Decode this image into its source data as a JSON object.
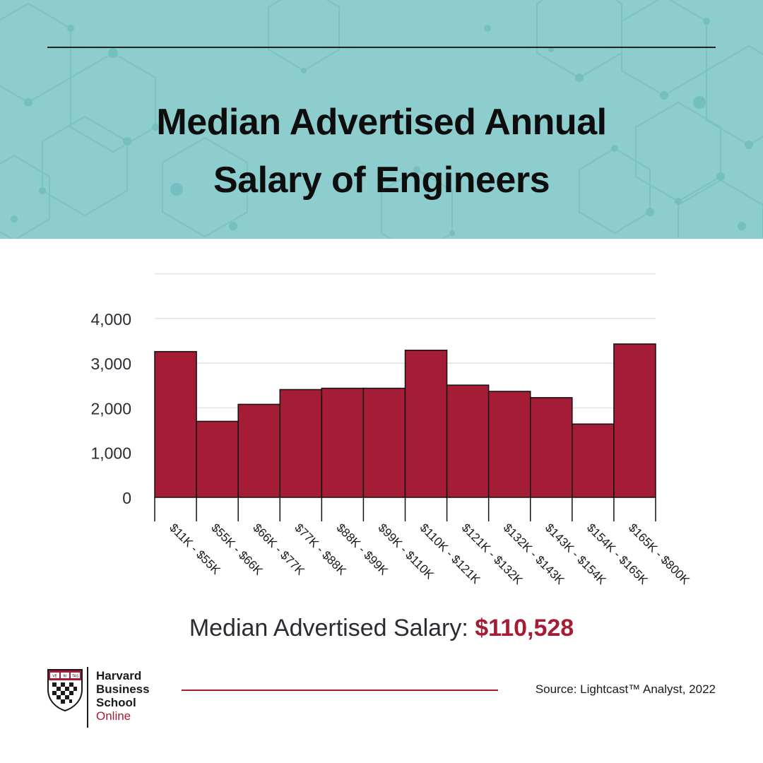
{
  "header": {
    "title_line1": "Median Advertised Annual",
    "title_line2": "Salary of Engineers",
    "background_color": "#8ecdce",
    "pattern_color": "#76bfc1"
  },
  "chart_data": {
    "type": "bar",
    "categories": [
      "$11K - $55K",
      "$55K - $66K",
      "$66K - $77K",
      "$77K - $88K",
      "$88K - $99K",
      "$99K - $110K",
      "$110K - $121K",
      "$121K - $132K",
      "$132K - $143K",
      "$143K - $154K",
      "$154K - $165K",
      "$165K - $800K"
    ],
    "values": [
      3260,
      1700,
      2080,
      2410,
      2440,
      2440,
      3290,
      2510,
      2370,
      2230,
      1640,
      3430
    ],
    "ylim": [
      0,
      5000
    ],
    "yticks": [
      0,
      1000,
      2000,
      3000,
      4000
    ],
    "ytick_labels": [
      "0",
      "1,000",
      "2,000",
      "3,000",
      "4,000"
    ],
    "gridlines": [
      1000,
      2000,
      3000,
      4000,
      5000
    ],
    "grid": true,
    "bar_color": "#a51c36",
    "bar_edge_color": "#111111",
    "gridline_color": "#e3e3e3",
    "axis_text_color": "#2a2b33"
  },
  "median": {
    "label": "Median Advertised Salary: ",
    "value": "$110,528",
    "value_color": "#a51c36"
  },
  "logo": {
    "line1": "Harvard",
    "line2": "Business",
    "line3": "School",
    "line4": "Online",
    "shield_label_1": "VE",
    "shield_label_2": "RI",
    "shield_label_3": "TAS",
    "accent_color": "#a51c36"
  },
  "footer": {
    "source": "Source: Lightcast™ Analyst, 2022",
    "rule_color": "#a51c36"
  }
}
